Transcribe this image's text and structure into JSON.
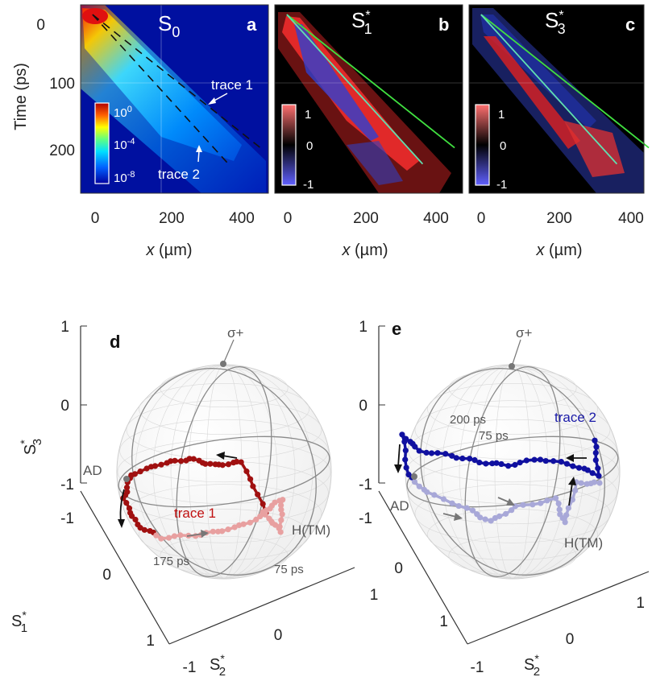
{
  "chart_data": [
    {
      "panel": "a",
      "type": "heatmap",
      "title": "S",
      "title_sub": "0",
      "ylabel": "Time (ps)",
      "xlabel_var": "x",
      "xlabel_unit": " (µm)",
      "xlim": [
        -30,
        440
      ],
      "ylim": [
        275,
        -15
      ],
      "x_ticks": [
        "0",
        "200",
        "400"
      ],
      "y_ticks": [
        "0",
        "100",
        "200"
      ],
      "colorbar": {
        "scale": "log",
        "labels_base": [
          "10",
          "10",
          "10"
        ],
        "labels_exp": [
          "0",
          "-4",
          "-8"
        ]
      },
      "annotations": [
        {
          "text": "trace 1"
        },
        {
          "text": "trace 2"
        }
      ],
      "traces": [
        {
          "name": "trace 1",
          "points": [
            [
              0,
              0
            ],
            [
              420,
              205
            ]
          ]
        },
        {
          "name": "trace 2",
          "points": [
            [
              0,
              0
            ],
            [
              340,
              230
            ]
          ]
        }
      ]
    },
    {
      "panel": "b",
      "type": "heatmap",
      "title": "S",
      "title_sup": "*",
      "title_sub": "1",
      "xlabel_var": "x",
      "xlabel_unit": " (µm)",
      "xlim": [
        -30,
        440
      ],
      "ylim": [
        275,
        -15
      ],
      "x_ticks": [
        "0",
        "200",
        "400"
      ],
      "colorbar": {
        "scale": "linear",
        "labels": [
          "1",
          "0",
          "-1"
        ]
      }
    },
    {
      "panel": "c",
      "type": "heatmap",
      "title": "S",
      "title_sup": "*",
      "title_sub": "3",
      "xlabel_var": "x",
      "xlabel_unit": " (µm)",
      "xlim": [
        -30,
        440
      ],
      "ylim": [
        275,
        -15
      ],
      "x_ticks": [
        "0",
        "200",
        "400"
      ],
      "colorbar": {
        "scale": "linear",
        "labels": [
          "1",
          "0",
          "-1"
        ]
      }
    },
    {
      "panel": "d",
      "type": "scatter",
      "projection": "3d-poincare-sphere",
      "axes": {
        "x": {
          "label": "S",
          "sup": "*",
          "sub": "1",
          "ticks": [
            "-1",
            "0",
            "1"
          ]
        },
        "y": {
          "label": "S",
          "sup": "*",
          "sub": "2",
          "ticks": [
            "-1",
            "0",
            "1"
          ]
        },
        "z": {
          "label": "S",
          "sup": "*",
          "sub": "3",
          "ticks": [
            "1",
            "0",
            "-1"
          ]
        }
      },
      "series": [
        {
          "name": "trace 1",
          "color": "#a01010",
          "fade_color": "#f0b0b0"
        }
      ],
      "labels": [
        "σ+",
        "AD",
        "H(TM)",
        "175 ps",
        "75 ps"
      ]
    },
    {
      "panel": "e",
      "type": "scatter",
      "projection": "3d-poincare-sphere",
      "axes": {
        "x": {
          "label": "S",
          "sup": "*",
          "sub": "1",
          "ticks": [
            "-1",
            "0",
            "1"
          ]
        },
        "y": {
          "label": "S",
          "sup": "*",
          "sub": "2",
          "ticks": [
            "-1",
            "0",
            "1"
          ]
        },
        "z": {
          "label": "S",
          "sup": "*",
          "sub": "3",
          "ticks": [
            "1",
            "0",
            "-1"
          ]
        }
      },
      "series": [
        {
          "name": "trace 2",
          "color": "#1010a0",
          "fade_color": "#b8b8e0"
        }
      ],
      "labels": [
        "σ+",
        "AD",
        "H(TM)",
        "200 ps",
        "75 ps"
      ]
    }
  ],
  "colors": {
    "heat_bg": "#0010a0",
    "red": "#e01010",
    "blue": "#2040c0",
    "green": "#40e040",
    "trace1": "#a01010",
    "trace2": "#1010a0",
    "sphere_line": "#8a8a8a"
  }
}
